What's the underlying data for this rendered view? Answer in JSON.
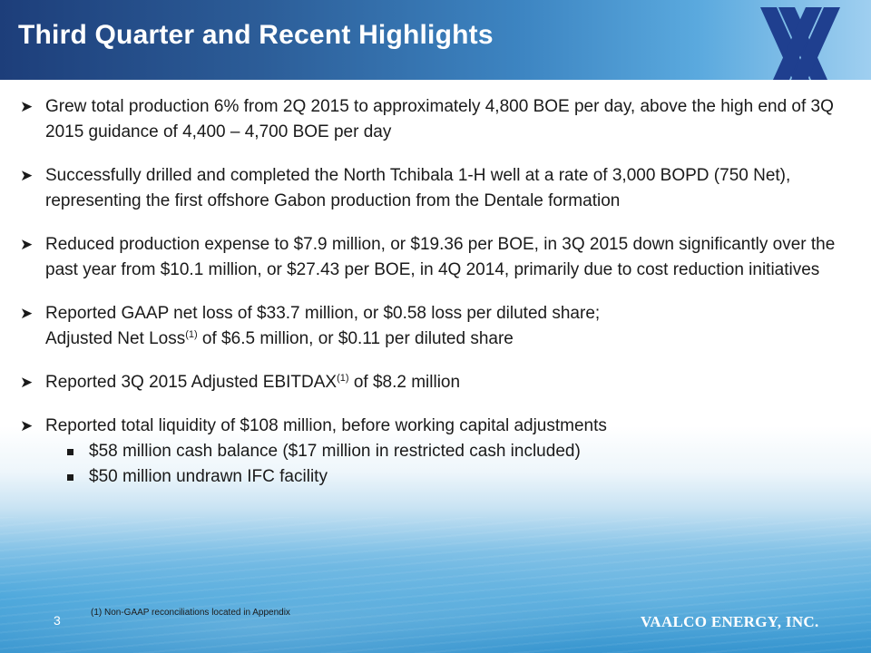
{
  "slide": {
    "title": "Third Quarter and Recent Highlights",
    "page_number": "3",
    "company": "VAALCO ENERGY, INC.",
    "footnote": "(1)   Non-GAAP  reconciliations located in Appendix",
    "brand_color": "#1d3e7a"
  },
  "bullets": [
    {
      "text": "Grew total production 6% from 2Q 2015 to approximately 4,800 BOE per day, above the high end of 3Q 2015 guidance of 4,400 – 4,700 BOE per day"
    },
    {
      "text": "Successfully drilled and completed the North Tchibala 1-H well at a rate of 3,000 BOPD (750 Net), representing the first offshore Gabon production from the Dentale formation"
    },
    {
      "text": "Reduced production expense to $7.9 million, or $19.36 per BOE, in 3Q 2015 down significantly over the past year from $10.1 million, or $27.43 per BOE, in 4Q 2014, primarily due to cost reduction initiatives"
    },
    {
      "line1": "Reported GAAP net loss of $33.7 million, or $0.58 loss per diluted share;",
      "line2_a": "Adjusted Net Loss",
      "sup": "(1)",
      "line2_b": " of $6.5 million, or $0.11 per diluted share"
    },
    {
      "a": "Reported 3Q 2015 Adjusted EBITDAX",
      "sup": "(1)",
      "b": " of $8.2 million"
    },
    {
      "text": "Reported total liquidity of $108 million, before working capital adjustments",
      "subitems": [
        "$58 million cash balance ($17 million in restricted cash included)",
        "$50 million undrawn IFC facility"
      ]
    }
  ],
  "icons": {
    "bullet": "arrow-bullet-icon",
    "sub_bullet": "square-bullet-icon",
    "logo": "vaalco-logo-icon"
  }
}
